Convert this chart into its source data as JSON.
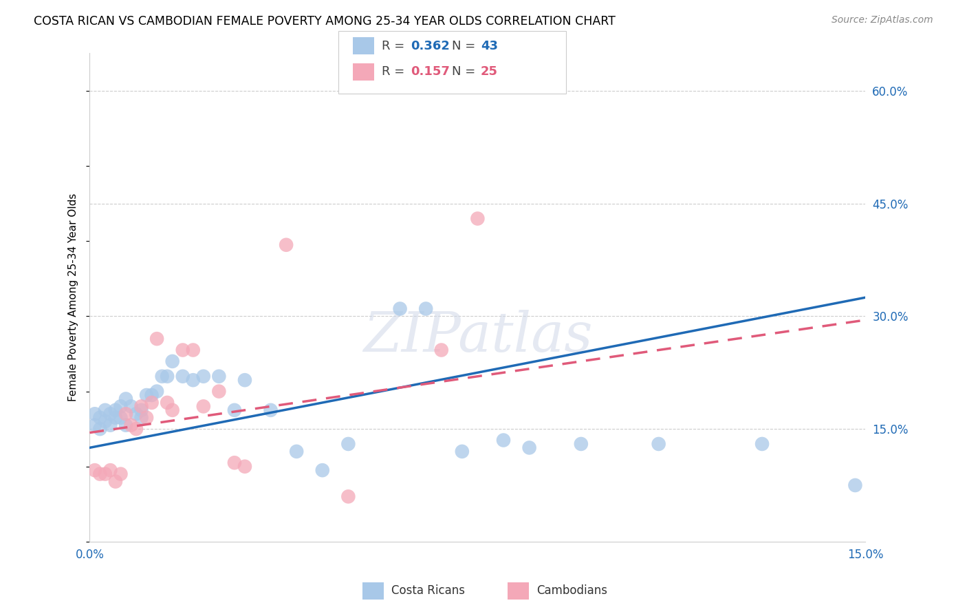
{
  "title": "COSTA RICAN VS CAMBODIAN FEMALE POVERTY AMONG 25-34 YEAR OLDS CORRELATION CHART",
  "source": "Source: ZipAtlas.com",
  "ylabel": "Female Poverty Among 25-34 Year Olds",
  "xlim": [
    0.0,
    0.15
  ],
  "ylim": [
    0.0,
    0.65
  ],
  "xticks": [
    0.0,
    0.03,
    0.06,
    0.09,
    0.12,
    0.15
  ],
  "xtick_labels": [
    "0.0%",
    "",
    "",
    "",
    "",
    "15.0%"
  ],
  "ytick_labels_right": [
    "",
    "15.0%",
    "",
    "30.0%",
    "",
    "45.0%",
    "",
    "60.0%"
  ],
  "yticks_right": [
    0.0,
    0.15,
    0.225,
    0.3,
    0.375,
    0.45,
    0.525,
    0.6
  ],
  "blue_R": "0.362",
  "blue_N": "43",
  "pink_R": "0.157",
  "pink_N": "25",
  "blue_color": "#a8c8e8",
  "pink_color": "#f4a8b8",
  "blue_line_color": "#1f6ab5",
  "pink_line_color": "#e05a7a",
  "background_color": "#ffffff",
  "grid_color": "#cccccc",
  "costa_rican_x": [
    0.001,
    0.001,
    0.002,
    0.002,
    0.003,
    0.003,
    0.004,
    0.004,
    0.005,
    0.005,
    0.006,
    0.006,
    0.007,
    0.007,
    0.008,
    0.009,
    0.01,
    0.01,
    0.011,
    0.012,
    0.013,
    0.014,
    0.015,
    0.016,
    0.018,
    0.02,
    0.022,
    0.025,
    0.028,
    0.03,
    0.035,
    0.04,
    0.045,
    0.05,
    0.06,
    0.065,
    0.072,
    0.08,
    0.085,
    0.095,
    0.11,
    0.13,
    0.148
  ],
  "costa_rican_y": [
    0.17,
    0.155,
    0.165,
    0.15,
    0.175,
    0.16,
    0.17,
    0.155,
    0.175,
    0.165,
    0.18,
    0.165,
    0.19,
    0.155,
    0.18,
    0.17,
    0.175,
    0.165,
    0.195,
    0.195,
    0.2,
    0.22,
    0.22,
    0.24,
    0.22,
    0.215,
    0.22,
    0.22,
    0.175,
    0.215,
    0.175,
    0.12,
    0.095,
    0.13,
    0.31,
    0.31,
    0.12,
    0.135,
    0.125,
    0.13,
    0.13,
    0.13,
    0.075
  ],
  "cambodian_x": [
    0.001,
    0.002,
    0.003,
    0.004,
    0.005,
    0.006,
    0.007,
    0.008,
    0.009,
    0.01,
    0.011,
    0.012,
    0.013,
    0.015,
    0.016,
    0.018,
    0.02,
    0.022,
    0.025,
    0.028,
    0.03,
    0.038,
    0.05,
    0.068,
    0.075
  ],
  "cambodian_y": [
    0.095,
    0.09,
    0.09,
    0.095,
    0.08,
    0.09,
    0.17,
    0.155,
    0.15,
    0.18,
    0.165,
    0.185,
    0.27,
    0.185,
    0.175,
    0.255,
    0.255,
    0.18,
    0.2,
    0.105,
    0.1,
    0.395,
    0.06,
    0.255,
    0.43
  ],
  "blue_line_x0": 0.0,
  "blue_line_y0": 0.125,
  "blue_line_x1": 0.15,
  "blue_line_y1": 0.325,
  "pink_line_x0": 0.0,
  "pink_line_y0": 0.145,
  "pink_line_x1": 0.15,
  "pink_line_y1": 0.295,
  "watermark": "ZIPatlas",
  "legend_labels": [
    "Costa Ricans",
    "Cambodians"
  ]
}
